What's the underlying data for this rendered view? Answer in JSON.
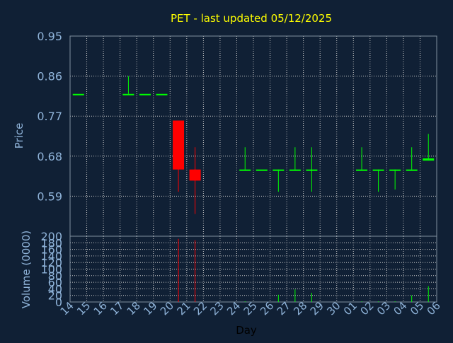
{
  "chart_data": {
    "type": "candlestick",
    "title": "PET - last updated 05/12/2025",
    "xlabel": "Day",
    "price_panel": {
      "ylabel": "Price",
      "ylim": [
        0.5,
        0.95
      ],
      "y_ticks": [
        "0.95",
        "0.86",
        "0.77",
        "0.68",
        "0.59"
      ],
      "y_tick_values": [
        0.95,
        0.86,
        0.77,
        0.68,
        0.59
      ]
    },
    "volume_panel": {
      "ylabel": "Volume (0000)",
      "ylim": [
        0,
        200
      ],
      "y_ticks": [
        "200",
        "180",
        "160",
        "140",
        "120",
        "100",
        "80",
        "60",
        "40",
        "20",
        "0"
      ],
      "y_tick_values": [
        200,
        180,
        160,
        140,
        120,
        100,
        80,
        60,
        40,
        20,
        0
      ]
    },
    "x_ticks": [
      "14",
      "15",
      "16",
      "17",
      "18",
      "19",
      "20",
      "21",
      "22",
      "23",
      "24",
      "25",
      "26",
      "27",
      "28",
      "29",
      "30",
      "01",
      "02",
      "03",
      "04",
      "05",
      "06"
    ],
    "candles": [
      {
        "day": "14",
        "open": 0.82,
        "high": 0.82,
        "low": 0.82,
        "close": 0.82,
        "volume": 0
      },
      {
        "day": "17",
        "open": 0.82,
        "high": 0.86,
        "low": 0.82,
        "close": 0.82,
        "volume": 0
      },
      {
        "day": "18",
        "open": 0.82,
        "high": 0.82,
        "low": 0.82,
        "close": 0.82,
        "volume": 0
      },
      {
        "day": "19",
        "open": 0.82,
        "high": 0.82,
        "low": 0.82,
        "close": 0.82,
        "volume": 0
      },
      {
        "day": "20",
        "open": 0.76,
        "high": 0.76,
        "low": 0.6,
        "close": 0.65,
        "volume": 192
      },
      {
        "day": "21",
        "open": 0.65,
        "high": 0.7,
        "low": 0.55,
        "close": 0.625,
        "volume": 188
      },
      {
        "day": "24",
        "open": 0.65,
        "high": 0.7,
        "low": 0.65,
        "close": 0.65,
        "volume": 2
      },
      {
        "day": "25",
        "open": 0.65,
        "high": 0.65,
        "low": 0.65,
        "close": 0.65,
        "volume": 0
      },
      {
        "day": "26",
        "open": 0.65,
        "high": 0.65,
        "low": 0.6,
        "close": 0.65,
        "volume": 22
      },
      {
        "day": "27",
        "open": 0.65,
        "high": 0.7,
        "low": 0.65,
        "close": 0.65,
        "volume": 38
      },
      {
        "day": "28",
        "open": 0.65,
        "high": 0.7,
        "low": 0.6,
        "close": 0.65,
        "volume": 28
      },
      {
        "day": "01",
        "open": 0.65,
        "high": 0.7,
        "low": 0.65,
        "close": 0.65,
        "volume": 2
      },
      {
        "day": "02",
        "open": 0.65,
        "high": 0.65,
        "low": 0.6,
        "close": 0.65,
        "volume": 2
      },
      {
        "day": "03",
        "open": 0.65,
        "high": 0.65,
        "low": 0.605,
        "close": 0.65,
        "volume": 2
      },
      {
        "day": "04",
        "open": 0.65,
        "high": 0.7,
        "low": 0.65,
        "close": 0.65,
        "volume": 20
      },
      {
        "day": "05",
        "open": 0.67,
        "high": 0.73,
        "low": 0.67,
        "close": 0.675,
        "volume": 48
      }
    ],
    "grid": true,
    "colors": {
      "background": "#102035",
      "axis": "#8090a0",
      "grid": "#c8c8c8",
      "title": "#ffff00",
      "label": "#8fb3d9",
      "up": "#00ff00",
      "down": "#ff0000"
    }
  }
}
